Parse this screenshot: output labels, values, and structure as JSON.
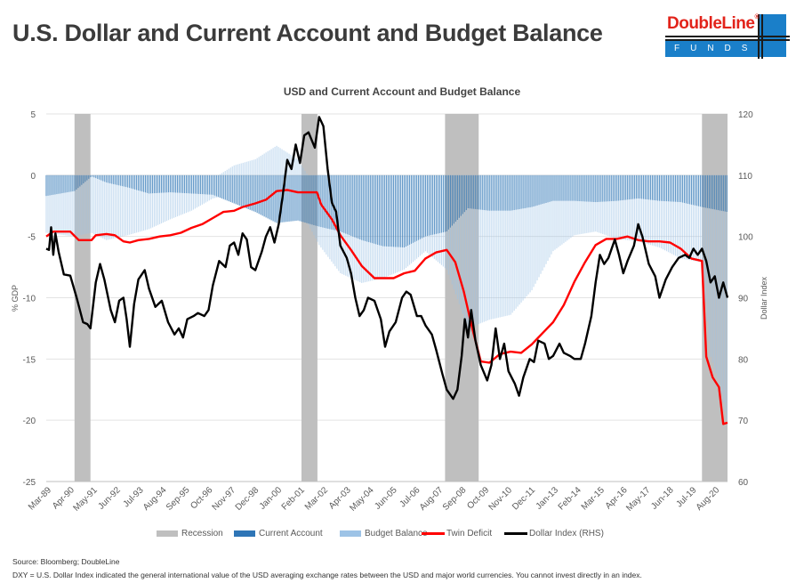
{
  "page": {
    "title": "U.S. Dollar and Current Account and Budget Balance",
    "source": "Source: Bloomberg; DoubleLine",
    "note": "DXY = U.S. Dollar Index indicated the general international value of the USD averaging exchange rates between the USD and major world currencies. You cannot invest directly in an index."
  },
  "logo": {
    "brand": "DoubleLine",
    "registered": "®",
    "sub": "FUNDS",
    "brand_color": "#e2231a",
    "block_color": "#1a7fc9"
  },
  "chart_data": {
    "type": "bar+line",
    "title": "USD and Current Account and Budget Balance",
    "ylabel": "% GDP",
    "y2label": "Dollar Index",
    "ylim": [
      -25,
      5
    ],
    "y2lim": [
      60,
      120
    ],
    "yticks": [
      5,
      0,
      -5,
      -10,
      -15,
      -20,
      -25
    ],
    "y2ticks": [
      120,
      110,
      100,
      90,
      80,
      70,
      60
    ],
    "xlim": [
      1989.17,
      2021.2
    ],
    "grid": true,
    "legend_position": "bottom",
    "xtick_labels": [
      "Mar-89",
      "Apr-90",
      "May-91",
      "Jun-92",
      "Jul-93",
      "Aug-94",
      "Sep-95",
      "Oct-96",
      "Nov-97",
      "Dec-98",
      "Jan-00",
      "Feb-01",
      "Mar-02",
      "Apr-03",
      "May-04",
      "Jun-05",
      "Jul-06",
      "Aug-07",
      "Sep-08",
      "Oct-09",
      "Nov-10",
      "Dec-11",
      "Jan-13",
      "Feb-14",
      "Mar-15",
      "Apr-16",
      "May-17",
      "Jun-18",
      "Jul-19",
      "Aug-20"
    ],
    "xtick_years": [
      1989.17,
      1990.25,
      1991.33,
      1992.42,
      1993.5,
      1994.58,
      1995.67,
      1996.75,
      1997.83,
      1998.92,
      2000.0,
      2001.08,
      2002.17,
      2003.25,
      2004.33,
      2005.42,
      2006.5,
      2007.58,
      2008.67,
      2009.75,
      2010.83,
      2011.92,
      2013.0,
      2014.08,
      2015.17,
      2016.25,
      2017.33,
      2018.42,
      2019.5,
      2020.58
    ],
    "legend": [
      {
        "name": "Recession",
        "color": "#bfbfbf",
        "kind": "box"
      },
      {
        "name": "Current Account",
        "color": "#2e75b6",
        "kind": "box"
      },
      {
        "name": "Budget Balance",
        "color": "#9dc3e6",
        "kind": "box"
      },
      {
        "name": "Twin Deficit",
        "color": "#ff0000",
        "kind": "line"
      },
      {
        "name": "Dollar Index (RHS)",
        "color": "#000000",
        "kind": "line"
      }
    ],
    "recessions": [
      [
        1990.5,
        1991.25
      ],
      [
        2001.17,
        2001.92
      ],
      [
        2007.92,
        2009.5
      ],
      [
        2020.0,
        2021.2
      ]
    ],
    "current_account": {
      "name": "Current Account",
      "axis": "left",
      "points": [
        [
          1989.17,
          -1.7
        ],
        [
          1990.5,
          -1.3
        ],
        [
          1991.3,
          -0.1
        ],
        [
          1992.0,
          -0.6
        ],
        [
          1993.0,
          -1.0
        ],
        [
          1994.0,
          -1.5
        ],
        [
          1995.0,
          -1.4
        ],
        [
          1996.0,
          -1.5
        ],
        [
          1997.0,
          -1.6
        ],
        [
          1998.0,
          -2.3
        ],
        [
          1999.0,
          -3.0
        ],
        [
          2000.0,
          -3.9
        ],
        [
          2001.0,
          -3.7
        ],
        [
          2002.0,
          -4.2
        ],
        [
          2003.0,
          -4.6
        ],
        [
          2004.0,
          -5.3
        ],
        [
          2005.0,
          -5.8
        ],
        [
          2006.0,
          -5.9
        ],
        [
          2007.0,
          -5.0
        ],
        [
          2008.0,
          -4.6
        ],
        [
          2009.0,
          -2.7
        ],
        [
          2010.0,
          -2.9
        ],
        [
          2011.0,
          -2.9
        ],
        [
          2012.0,
          -2.6
        ],
        [
          2013.0,
          -2.1
        ],
        [
          2014.0,
          -2.1
        ],
        [
          2015.0,
          -2.2
        ],
        [
          2016.0,
          -2.1
        ],
        [
          2017.0,
          -1.9
        ],
        [
          2018.0,
          -2.1
        ],
        [
          2019.0,
          -2.2
        ],
        [
          2020.0,
          -2.6
        ],
        [
          2021.2,
          -3.0
        ]
      ]
    },
    "budget_balance": {
      "name": "Budget Balance",
      "axis": "left",
      "points": [
        [
          1989.17,
          -3.0
        ],
        [
          1990.5,
          -3.7
        ],
        [
          1991.3,
          -4.6
        ],
        [
          1992.0,
          -4.7
        ],
        [
          1993.0,
          -3.9
        ],
        [
          1994.0,
          -2.9
        ],
        [
          1995.0,
          -2.2
        ],
        [
          1996.0,
          -1.4
        ],
        [
          1997.0,
          -0.3
        ],
        [
          1998.0,
          0.8
        ],
        [
          1999.0,
          1.3
        ],
        [
          2000.0,
          2.4
        ],
        [
          2001.0,
          1.3
        ],
        [
          2002.0,
          -1.5
        ],
        [
          2003.0,
          -3.4
        ],
        [
          2004.0,
          -3.5
        ],
        [
          2005.0,
          -2.6
        ],
        [
          2006.0,
          -1.8
        ],
        [
          2007.0,
          -1.2
        ],
        [
          2008.0,
          -3.1
        ],
        [
          2009.0,
          -9.8
        ],
        [
          2010.0,
          -8.9
        ],
        [
          2011.0,
          -8.5
        ],
        [
          2012.0,
          -6.8
        ],
        [
          2013.0,
          -4.1
        ],
        [
          2014.0,
          -2.8
        ],
        [
          2015.0,
          -2.4
        ],
        [
          2016.0,
          -3.1
        ],
        [
          2017.0,
          -3.5
        ],
        [
          2018.0,
          -3.8
        ],
        [
          2019.0,
          -4.6
        ],
        [
          2020.0,
          -4.5
        ],
        [
          2020.4,
          -12.0
        ],
        [
          2020.8,
          -14.0
        ],
        [
          2021.2,
          -17.2
        ]
      ]
    },
    "twin_deficit": {
      "name": "Twin Deficit",
      "axis": "left",
      "points": [
        [
          1989.17,
          -5.0
        ],
        [
          1989.5,
          -4.6
        ],
        [
          1990.3,
          -4.6
        ],
        [
          1990.7,
          -5.3
        ],
        [
          1991.3,
          -5.3
        ],
        [
          1991.5,
          -4.9
        ],
        [
          1992.0,
          -4.8
        ],
        [
          1992.4,
          -4.9
        ],
        [
          1992.8,
          -5.4
        ],
        [
          1993.1,
          -5.5
        ],
        [
          1993.5,
          -5.3
        ],
        [
          1994.0,
          -5.2
        ],
        [
          1994.5,
          -5.0
        ],
        [
          1995.0,
          -4.9
        ],
        [
          1995.5,
          -4.7
        ],
        [
          1996.0,
          -4.3
        ],
        [
          1996.5,
          -4.0
        ],
        [
          1997.0,
          -3.5
        ],
        [
          1997.5,
          -3.0
        ],
        [
          1998.0,
          -2.9
        ],
        [
          1998.4,
          -2.6
        ],
        [
          1999.0,
          -2.3
        ],
        [
          1999.5,
          -2.0
        ],
        [
          2000.0,
          -1.3
        ],
        [
          2000.5,
          -1.2
        ],
        [
          2001.0,
          -1.4
        ],
        [
          2001.5,
          -1.4
        ],
        [
          2001.9,
          -1.4
        ],
        [
          2002.1,
          -2.4
        ],
        [
          2002.6,
          -3.6
        ],
        [
          2003.0,
          -4.9
        ],
        [
          2003.5,
          -6.1
        ],
        [
          2004.0,
          -7.4
        ],
        [
          2004.6,
          -8.4
        ],
        [
          2005.0,
          -8.4
        ],
        [
          2005.5,
          -8.4
        ],
        [
          2006.0,
          -8.0
        ],
        [
          2006.5,
          -7.8
        ],
        [
          2007.0,
          -6.8
        ],
        [
          2007.5,
          -6.3
        ],
        [
          2008.0,
          -6.1
        ],
        [
          2008.4,
          -7.1
        ],
        [
          2008.8,
          -9.5
        ],
        [
          2009.2,
          -12.5
        ],
        [
          2009.6,
          -15.2
        ],
        [
          2010.0,
          -15.3
        ],
        [
          2010.5,
          -14.6
        ],
        [
          2011.0,
          -14.4
        ],
        [
          2011.5,
          -14.5
        ],
        [
          2012.0,
          -13.8
        ],
        [
          2012.5,
          -12.9
        ],
        [
          2013.0,
          -12.0
        ],
        [
          2013.5,
          -10.6
        ],
        [
          2014.0,
          -8.7
        ],
        [
          2014.5,
          -7.1
        ],
        [
          2015.0,
          -5.7
        ],
        [
          2015.5,
          -5.2
        ],
        [
          2016.0,
          -5.2
        ],
        [
          2016.5,
          -5.0
        ],
        [
          2017.0,
          -5.3
        ],
        [
          2017.5,
          -5.4
        ],
        [
          2018.0,
          -5.4
        ],
        [
          2018.5,
          -5.5
        ],
        [
          2019.0,
          -6.0
        ],
        [
          2019.5,
          -6.8
        ],
        [
          2020.0,
          -7.0
        ],
        [
          2020.2,
          -14.8
        ],
        [
          2020.5,
          -16.5
        ],
        [
          2020.8,
          -17.3
        ],
        [
          2021.0,
          -20.3
        ],
        [
          2021.2,
          -20.2
        ]
      ]
    },
    "dollar_index": {
      "name": "Dollar Index (RHS)",
      "axis": "right",
      "points": [
        [
          1989.17,
          98.0
        ],
        [
          1989.3,
          97.8
        ],
        [
          1989.4,
          101.5
        ],
        [
          1989.5,
          97.0
        ],
        [
          1989.6,
          100.5
        ],
        [
          1989.75,
          97.5
        ],
        [
          1990.0,
          93.8
        ],
        [
          1990.3,
          93.6
        ],
        [
          1990.6,
          90.0
        ],
        [
          1990.9,
          86.0
        ],
        [
          1991.1,
          85.7
        ],
        [
          1991.25,
          85.0
        ],
        [
          1991.5,
          92.5
        ],
        [
          1991.7,
          95.5
        ],
        [
          1991.9,
          93.0
        ],
        [
          1992.2,
          88.0
        ],
        [
          1992.4,
          86.0
        ],
        [
          1992.6,
          89.5
        ],
        [
          1992.8,
          90.0
        ],
        [
          1992.95,
          86.5
        ],
        [
          1993.1,
          82.0
        ],
        [
          1993.3,
          89.0
        ],
        [
          1993.5,
          93.0
        ],
        [
          1993.8,
          94.5
        ],
        [
          1994.0,
          91.5
        ],
        [
          1994.3,
          88.5
        ],
        [
          1994.6,
          89.5
        ],
        [
          1994.9,
          86.0
        ],
        [
          1995.2,
          84.0
        ],
        [
          1995.4,
          85.0
        ],
        [
          1995.6,
          83.5
        ],
        [
          1995.8,
          86.5
        ],
        [
          1996.1,
          87.0
        ],
        [
          1996.3,
          87.5
        ],
        [
          1996.6,
          87.0
        ],
        [
          1996.8,
          88.0
        ],
        [
          1997.0,
          92.0
        ],
        [
          1997.3,
          96.0
        ],
        [
          1997.6,
          95.0
        ],
        [
          1997.8,
          98.5
        ],
        [
          1998.0,
          99.0
        ],
        [
          1998.2,
          97.0
        ],
        [
          1998.4,
          100.5
        ],
        [
          1998.6,
          99.5
        ],
        [
          1998.8,
          95.0
        ],
        [
          1999.0,
          94.5
        ],
        [
          1999.3,
          97.5
        ],
        [
          1999.5,
          100.0
        ],
        [
          1999.7,
          101.5
        ],
        [
          1999.9,
          99.0
        ],
        [
          2000.1,
          102.0
        ],
        [
          2000.3,
          107.0
        ],
        [
          2000.5,
          112.5
        ],
        [
          2000.7,
          111.0
        ],
        [
          2000.9,
          115.0
        ],
        [
          2001.1,
          112.0
        ],
        [
          2001.3,
          116.5
        ],
        [
          2001.5,
          117.0
        ],
        [
          2001.8,
          114.5
        ],
        [
          2002.0,
          119.5
        ],
        [
          2002.2,
          118.0
        ],
        [
          2002.4,
          111.0
        ],
        [
          2002.6,
          105.5
        ],
        [
          2002.8,
          104.0
        ],
        [
          2003.0,
          98.5
        ],
        [
          2003.3,
          96.5
        ],
        [
          2003.5,
          94.0
        ],
        [
          2003.7,
          90.0
        ],
        [
          2003.9,
          87.0
        ],
        [
          2004.1,
          88.0
        ],
        [
          2004.3,
          90.0
        ],
        [
          2004.6,
          89.5
        ],
        [
          2004.9,
          86.5
        ],
        [
          2005.1,
          82.0
        ],
        [
          2005.3,
          84.5
        ],
        [
          2005.6,
          86.0
        ],
        [
          2005.9,
          90.0
        ],
        [
          2006.1,
          91.0
        ],
        [
          2006.3,
          90.5
        ],
        [
          2006.6,
          87.0
        ],
        [
          2006.8,
          87.0
        ],
        [
          2007.0,
          85.5
        ],
        [
          2007.3,
          84.0
        ],
        [
          2007.5,
          81.5
        ],
        [
          2007.8,
          77.5
        ],
        [
          2008.0,
          75.0
        ],
        [
          2008.3,
          73.5
        ],
        [
          2008.5,
          75.0
        ],
        [
          2008.7,
          80.5
        ],
        [
          2008.85,
          86.5
        ],
        [
          2009.0,
          83.5
        ],
        [
          2009.15,
          88.0
        ],
        [
          2009.35,
          83.0
        ],
        [
          2009.6,
          79.0
        ],
        [
          2009.9,
          76.5
        ],
        [
          2010.1,
          79.0
        ],
        [
          2010.3,
          85.0
        ],
        [
          2010.5,
          80.0
        ],
        [
          2010.7,
          82.5
        ],
        [
          2010.9,
          78.0
        ],
        [
          2011.2,
          76.0
        ],
        [
          2011.4,
          74.0
        ],
        [
          2011.6,
          77.0
        ],
        [
          2011.9,
          80.0
        ],
        [
          2012.1,
          79.5
        ],
        [
          2012.3,
          83.0
        ],
        [
          2012.6,
          82.5
        ],
        [
          2012.8,
          80.0
        ],
        [
          2013.0,
          80.5
        ],
        [
          2013.3,
          82.5
        ],
        [
          2013.5,
          81.0
        ],
        [
          2013.8,
          80.5
        ],
        [
          2014.0,
          80.0
        ],
        [
          2014.3,
          80.0
        ],
        [
          2014.5,
          82.5
        ],
        [
          2014.8,
          87.0
        ],
        [
          2015.0,
          92.5
        ],
        [
          2015.2,
          97.0
        ],
        [
          2015.4,
          95.5
        ],
        [
          2015.6,
          96.5
        ],
        [
          2015.9,
          99.5
        ],
        [
          2016.1,
          97.0
        ],
        [
          2016.3,
          94.0
        ],
        [
          2016.5,
          96.0
        ],
        [
          2016.8,
          98.5
        ],
        [
          2017.0,
          102.0
        ],
        [
          2017.2,
          100.0
        ],
        [
          2017.5,
          95.5
        ],
        [
          2017.8,
          93.5
        ],
        [
          2018.0,
          90.0
        ],
        [
          2018.3,
          93.0
        ],
        [
          2018.6,
          95.0
        ],
        [
          2018.9,
          96.5
        ],
        [
          2019.2,
          97.0
        ],
        [
          2019.4,
          96.5
        ],
        [
          2019.6,
          98.0
        ],
        [
          2019.8,
          97.0
        ],
        [
          2020.0,
          98.0
        ],
        [
          2020.2,
          96.0
        ],
        [
          2020.4,
          92.5
        ],
        [
          2020.6,
          93.5
        ],
        [
          2020.8,
          90.0
        ],
        [
          2021.0,
          92.5
        ],
        [
          2021.2,
          90.0
        ]
      ]
    }
  }
}
